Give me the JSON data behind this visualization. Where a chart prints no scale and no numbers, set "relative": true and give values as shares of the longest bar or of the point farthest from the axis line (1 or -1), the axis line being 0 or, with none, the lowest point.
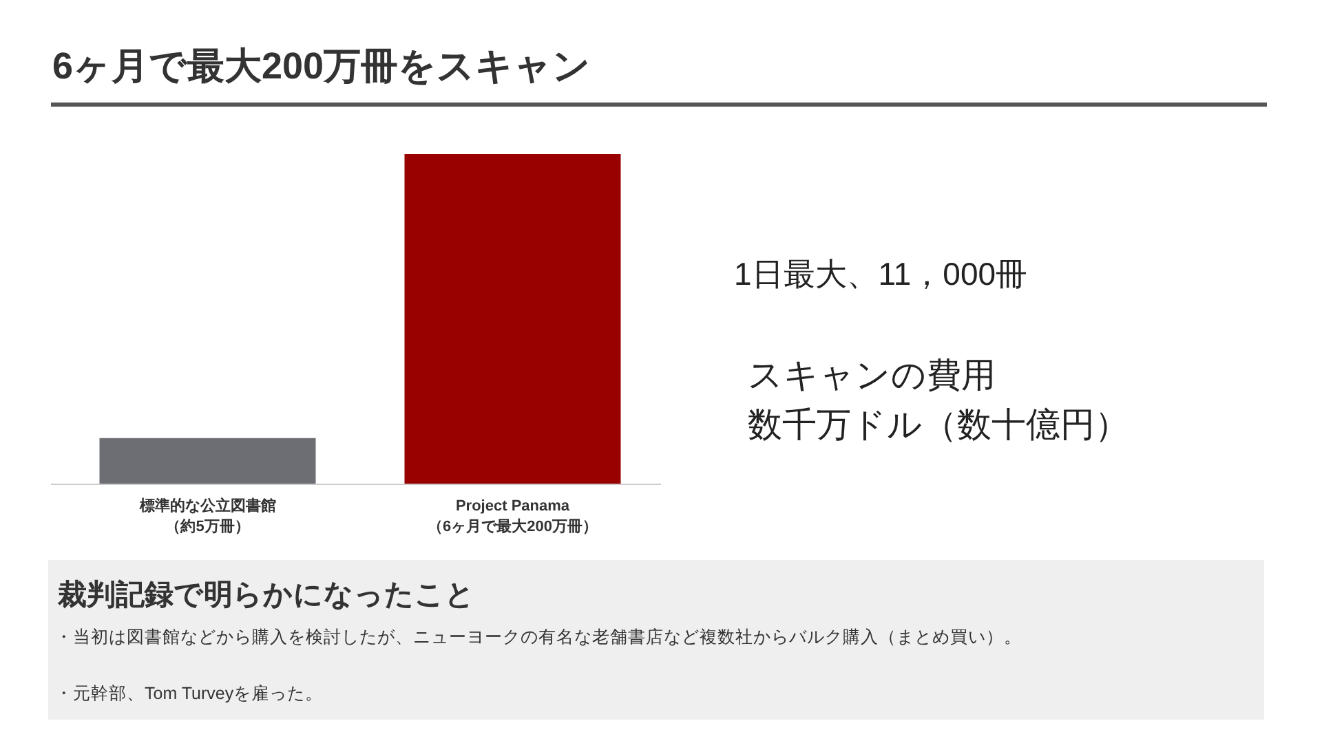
{
  "chart_data": {
    "type": "bar",
    "title": "6ヶ月で最大200万冊をスキャン",
    "categories": [
      "標準的な公立図書館（約5万冊）",
      "Project Panama（6ヶ月で最大200万冊）"
    ],
    "values": [
      0.14,
      1
    ],
    "colors": [
      "#6d6e73",
      "#990000"
    ],
    "relative": true,
    "annotations": [
      "1日最大、11，000冊",
      "スキャンの費用",
      "数千万ドル（数十億円）",
      "裁判記録で明らかになったこと",
      "・当初は図書館などから購入を検討したが、ニューヨークの有名な老舗書店など複数社からバルク購入（まとめ買い）。",
      "・元幹部、Tom Turveyを雇った。"
    ]
  }
}
